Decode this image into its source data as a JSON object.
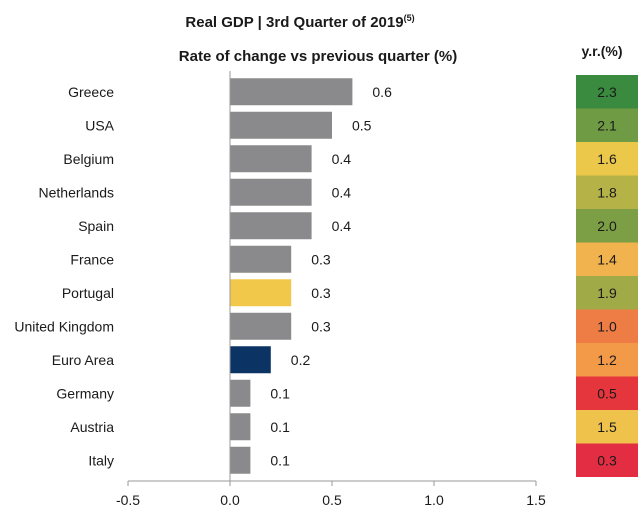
{
  "chart_data": {
    "type": "bar",
    "orientation": "horizontal",
    "title": "Real GDP | 3rd Quarter of 2019",
    "title_superscript": "(5)",
    "subtitle": "Rate of change vs previous quarter (%)",
    "categories": [
      "Greece",
      "USA",
      "Belgium",
      "Netherlands",
      "Spain",
      "France",
      "Portugal",
      "United Kingdom",
      "Euro Area",
      "Germany",
      "Austria",
      "Italy"
    ],
    "values": [
      0.6,
      0.5,
      0.4,
      0.4,
      0.4,
      0.3,
      0.3,
      0.3,
      0.2,
      0.1,
      0.1,
      0.1
    ],
    "value_labels": [
      "0.6",
      "0.5",
      "0.4",
      "0.4",
      "0.4",
      "0.3",
      "0.3",
      "0.3",
      "0.2",
      "0.1",
      "0.1",
      "0.1"
    ],
    "bar_colors": [
      "#8a8a8c",
      "#8a8a8c",
      "#8a8a8c",
      "#8a8a8c",
      "#8a8a8c",
      "#8a8a8c",
      "#f2c84b",
      "#8a8a8c",
      "#0b3364",
      "#8a8a8c",
      "#8a8a8c",
      "#8a8a8c"
    ],
    "xlim": [
      -0.5,
      1.5
    ],
    "xticks": [
      -0.5,
      0.0,
      0.5,
      1.0,
      1.5
    ],
    "xtick_labels": [
      "-0.5",
      "0.0",
      "0.5",
      "1.0",
      "1.5"
    ],
    "grid": false,
    "yr_column": {
      "header": "y.r.(%)",
      "labels": [
        "2.3",
        "2.1",
        "1.6",
        "1.8",
        "2.0",
        "1.4",
        "1.9",
        "1.0",
        "1.2",
        "0.5",
        "1.5",
        "0.3"
      ],
      "colors": [
        "#3a8a40",
        "#6f9b44",
        "#ecc84a",
        "#b5b347",
        "#7c9e45",
        "#f0b34d",
        "#a0aa47",
        "#ee7c45",
        "#f29a48",
        "#e5363d",
        "#efc24b",
        "#e22d43"
      ]
    }
  }
}
